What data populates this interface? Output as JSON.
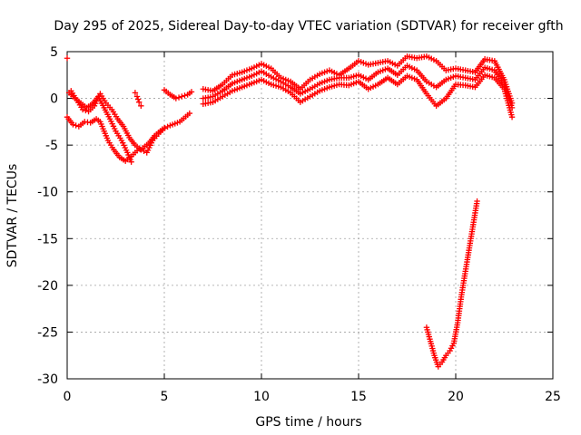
{
  "chart_data": {
    "type": "scatter",
    "title": "Day 295 of 2025, Sidereal Day-to-day VTEC variation (SDTVAR) for receiver gfth",
    "xlabel": "GPS time / hours",
    "ylabel": "SDTVAR / TECUs",
    "xlim": [
      0,
      25
    ],
    "ylim": [
      -30,
      5
    ],
    "xticks": [
      0,
      5,
      10,
      15,
      20,
      25
    ],
    "yticks": [
      5,
      0,
      -5,
      -10,
      -15,
      -20,
      -25,
      -30
    ],
    "grid": true,
    "marker": "+",
    "color": "#ff0000",
    "series": [
      {
        "name": "trace-1",
        "x": [
          0.0,
          0.3,
          0.6,
          0.9,
          1.2,
          1.5,
          1.7,
          1.9,
          2.1,
          2.4,
          2.7,
          3.0,
          3.3,
          3.6,
          3.9,
          4.2,
          4.5,
          4.9,
          5.3,
          5.8,
          6.3
        ],
        "y": [
          -2.0,
          -2.8,
          -3.0,
          -2.5,
          -2.6,
          -2.2,
          -2.5,
          -3.5,
          -4.5,
          -5.5,
          -6.3,
          -6.7,
          -6.2,
          -5.6,
          -5.3,
          -4.8,
          -4.0,
          -3.3,
          -2.9,
          -2.5,
          -1.6
        ]
      },
      {
        "name": "trace-2",
        "x": [
          0.1,
          0.4,
          0.7,
          1.0,
          1.3,
          1.6,
          1.9,
          2.2,
          2.5,
          2.8,
          3.1,
          3.3
        ],
        "y": [
          0.6,
          0.0,
          -0.5,
          -1.0,
          -0.6,
          0.2,
          -1.0,
          -2.2,
          -3.5,
          -4.5,
          -5.8,
          -6.8
        ]
      },
      {
        "name": "trace-3",
        "x": [
          0.2,
          0.5,
          0.8,
          1.1,
          1.4,
          1.7,
          2.0,
          2.3,
          2.6,
          2.9,
          3.2,
          3.5,
          3.8,
          4.1,
          4.4,
          4.7,
          5.0
        ],
        "y": [
          0.8,
          -0.2,
          -1.2,
          -1.4,
          -0.8,
          0.5,
          -0.5,
          -1.2,
          -2.2,
          -3.0,
          -4.2,
          -5.0,
          -5.5,
          -5.8,
          -4.5,
          -3.8,
          -3.2
        ]
      },
      {
        "name": "trace-4",
        "x": [
          0.0
        ],
        "y": [
          4.3
        ]
      },
      {
        "name": "trace-5",
        "x": [
          3.5,
          3.6,
          3.7,
          3.8
        ],
        "y": [
          0.6,
          0.2,
          -0.4,
          -0.8
        ]
      },
      {
        "name": "trace-6",
        "x": [
          5.0,
          5.3,
          5.6,
          5.9,
          6.2,
          6.4
        ],
        "y": [
          0.9,
          0.4,
          0.0,
          0.2,
          0.4,
          0.7
        ]
      },
      {
        "name": "trace-7",
        "x": [
          7.0,
          7.5,
          8.0,
          8.5,
          9.0,
          9.5,
          10.0,
          10.5,
          11.0,
          11.5,
          12.0,
          12.5,
          13.0,
          13.5,
          14.0,
          14.5,
          15.0,
          15.5,
          16.0,
          16.5,
          17.0,
          17.5,
          18.0,
          18.5,
          19.0,
          19.5,
          20.0,
          20.5,
          21.0,
          21.5,
          22.0,
          22.5,
          22.9
        ],
        "y": [
          1.0,
          0.8,
          1.5,
          2.5,
          2.8,
          3.2,
          3.7,
          3.2,
          2.2,
          1.8,
          1.0,
          2.0,
          2.6,
          3.0,
          2.5,
          3.2,
          4.0,
          3.6,
          3.8,
          4.0,
          3.5,
          4.5,
          4.3,
          4.5,
          4.0,
          3.0,
          3.2,
          3.0,
          2.8,
          4.2,
          4.0,
          2.0,
          -0.5
        ]
      },
      {
        "name": "trace-8",
        "x": [
          7.0,
          7.5,
          8.0,
          8.5,
          9.0,
          9.5,
          10.0,
          10.5,
          11.0,
          11.5,
          12.0,
          12.5,
          13.0,
          13.5,
          14.0,
          14.5,
          15.0,
          15.5,
          16.0,
          16.5,
          17.0,
          17.5,
          18.0,
          18.5,
          19.0,
          19.5,
          20.0,
          20.5,
          21.0,
          21.5,
          22.0,
          22.5,
          22.9
        ],
        "y": [
          0.0,
          0.2,
          0.8,
          1.6,
          2.0,
          2.4,
          2.9,
          2.3,
          1.8,
          1.2,
          0.5,
          1.0,
          1.6,
          2.0,
          2.2,
          2.2,
          2.5,
          2.0,
          2.8,
          3.2,
          2.5,
          3.5,
          3.0,
          1.8,
          1.2,
          2.0,
          2.4,
          2.2,
          2.0,
          3.3,
          3.0,
          1.5,
          -1.0
        ]
      },
      {
        "name": "trace-9",
        "x": [
          7.0,
          7.5,
          8.0,
          8.5,
          9.0,
          9.5,
          10.0,
          10.5,
          11.0,
          11.5,
          12.0,
          12.5,
          13.0,
          13.5,
          14.0,
          14.5,
          15.0,
          15.5,
          16.0,
          16.5,
          17.0,
          17.5,
          18.0,
          18.5,
          19.0,
          19.5,
          20.0,
          20.5,
          21.0,
          21.5,
          22.0,
          22.5,
          22.9
        ],
        "y": [
          -0.6,
          -0.4,
          0.2,
          0.8,
          1.2,
          1.6,
          2.0,
          1.5,
          1.2,
          0.6,
          -0.4,
          0.2,
          0.8,
          1.2,
          1.5,
          1.4,
          1.8,
          1.0,
          1.5,
          2.2,
          1.5,
          2.4,
          2.0,
          0.5,
          -0.8,
          0.0,
          1.5,
          1.4,
          1.2,
          2.5,
          2.2,
          1.0,
          -2.0
        ]
      },
      {
        "name": "trace-10",
        "x": [
          18.5,
          18.7,
          18.9,
          19.1,
          19.3,
          19.5,
          19.7,
          19.9,
          20.1,
          20.3,
          20.5,
          20.7,
          20.9,
          21.1
        ],
        "y": [
          -24.5,
          -26.0,
          -27.5,
          -28.7,
          -28.2,
          -27.5,
          -27.0,
          -26.2,
          -24.0,
          -21.0,
          -18.5,
          -16.0,
          -13.5,
          -11.0
        ]
      }
    ]
  }
}
